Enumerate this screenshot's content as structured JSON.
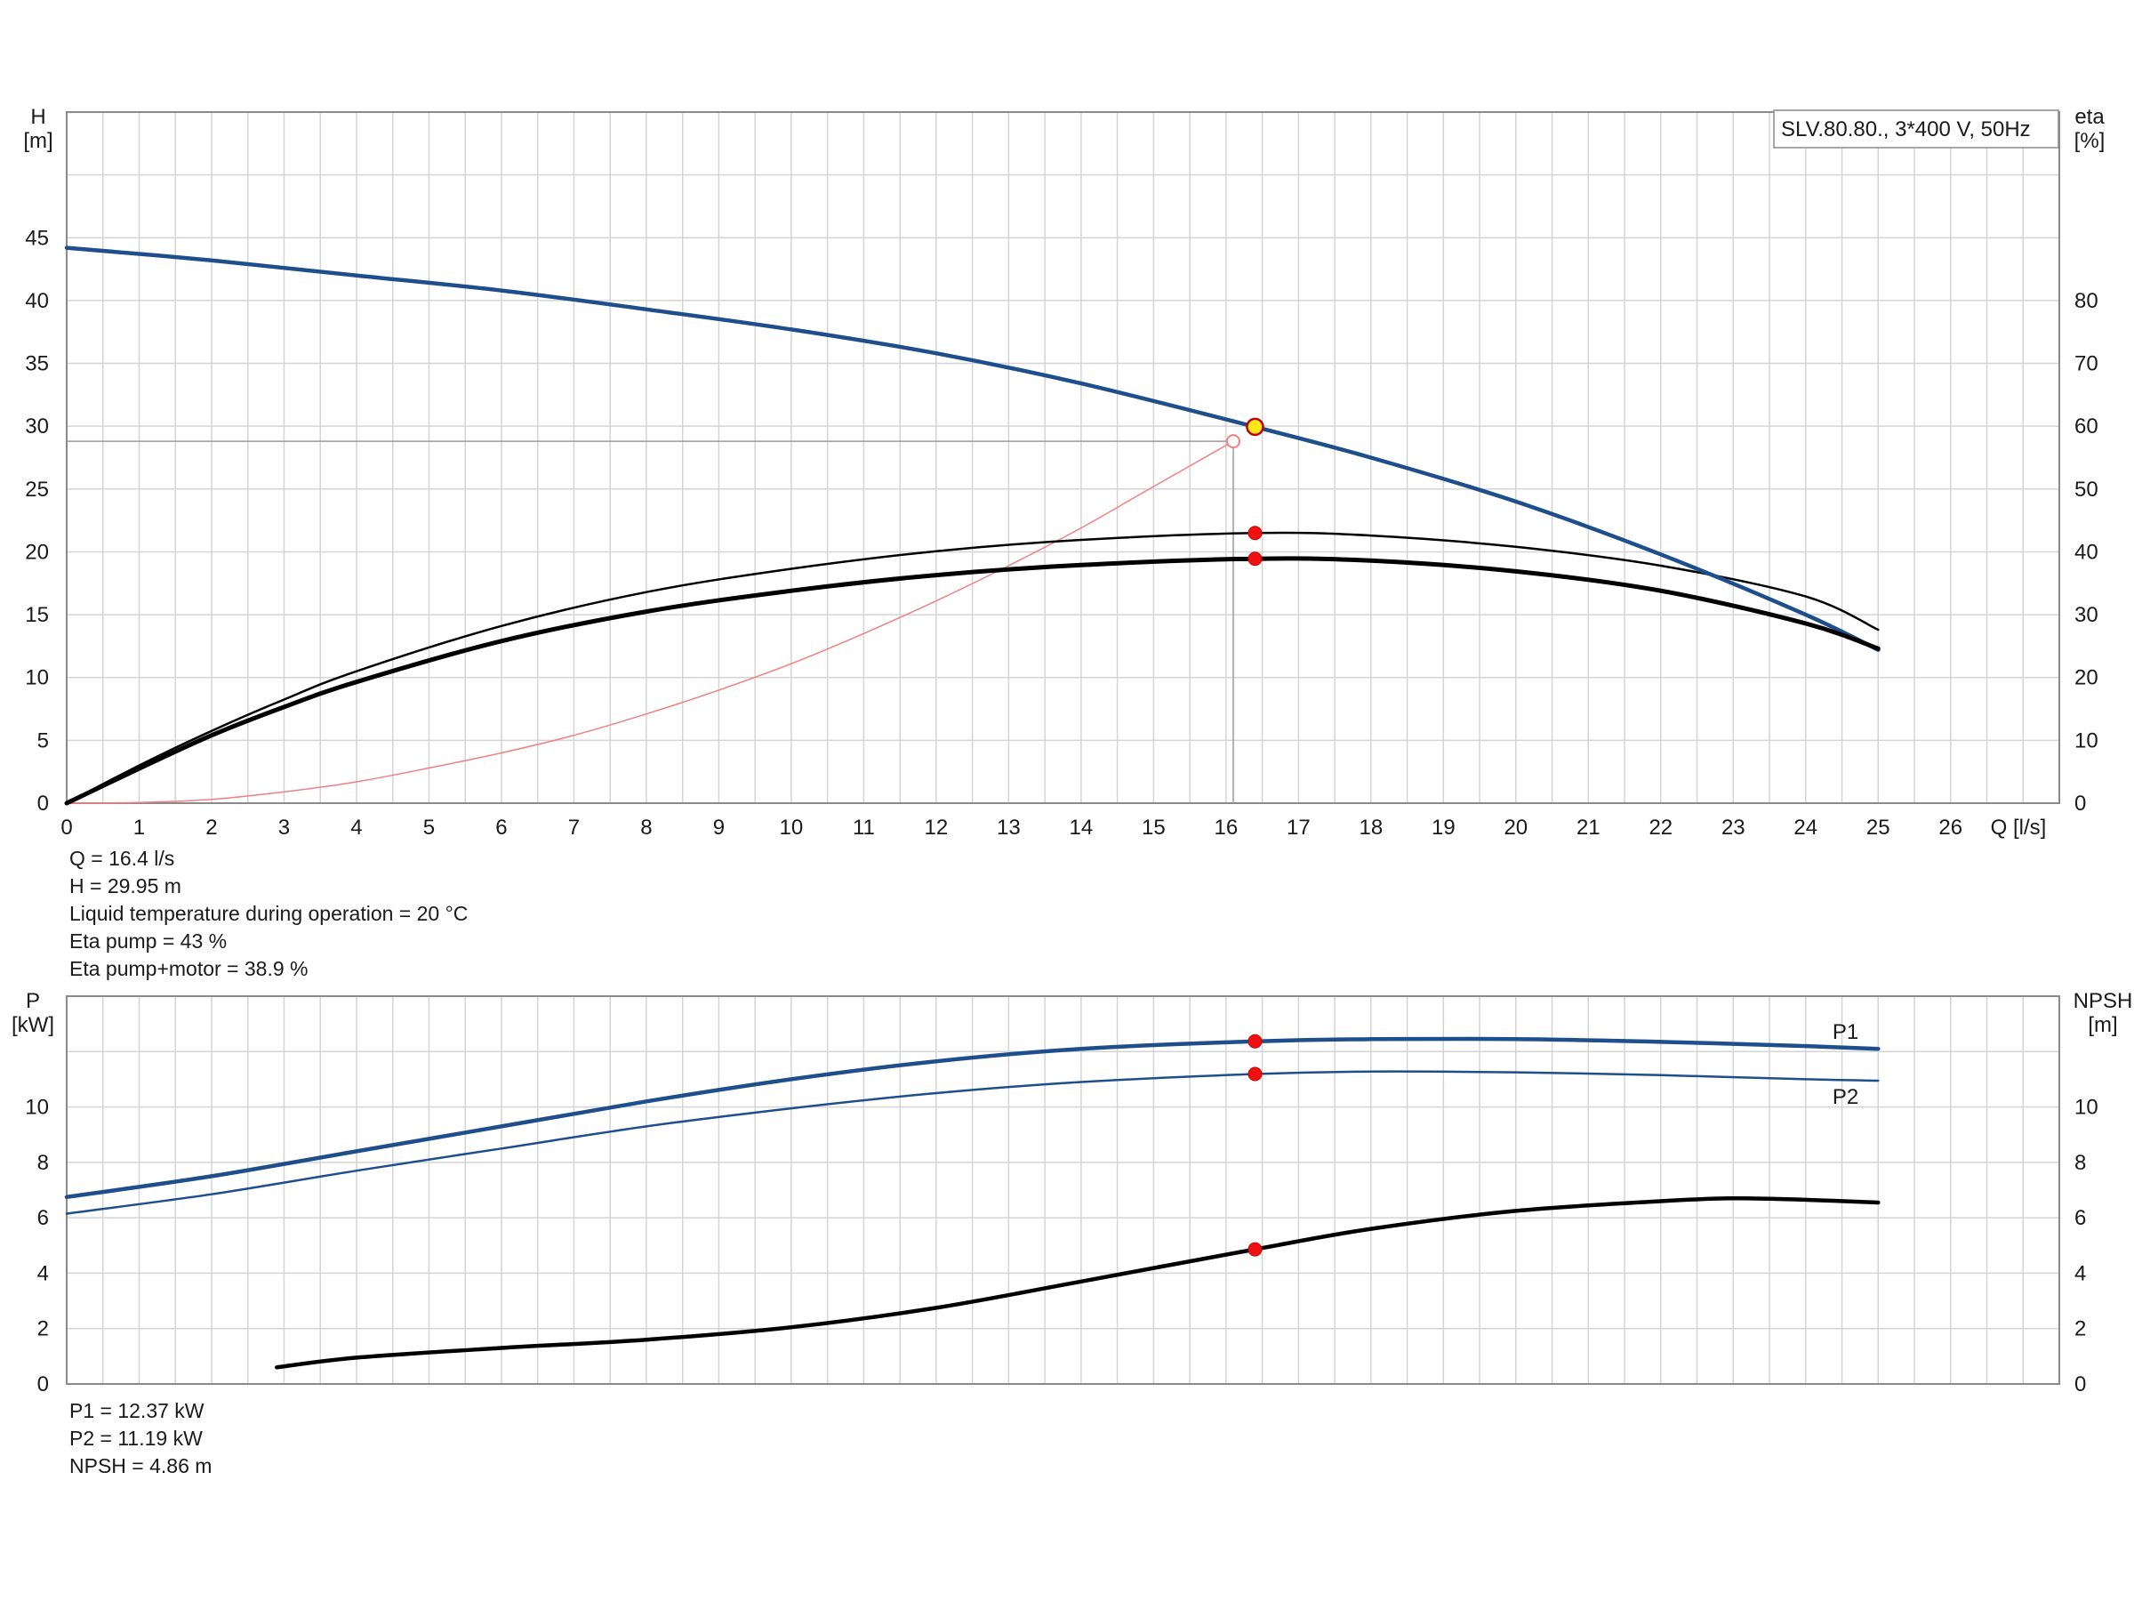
{
  "chart_data": [
    {
      "type": "line",
      "panel": "head-efficiency",
      "legend_box": "SLV.80.80., 3*400 V, 50Hz",
      "xlabel": "Q [l/s]",
      "ylabel_left": [
        "H",
        "[m]"
      ],
      "ylabel_right": [
        "eta",
        "[%]"
      ],
      "xlim": [
        0,
        27.5
      ],
      "ylim_left": [
        0,
        55
      ],
      "ylim_right": [
        0,
        110
      ],
      "x_ticks": [
        0,
        1,
        2,
        3,
        4,
        5,
        6,
        7,
        8,
        9,
        10,
        11,
        12,
        13,
        14,
        15,
        16,
        17,
        18,
        19,
        20,
        21,
        22,
        23,
        24,
        25,
        26
      ],
      "y_ticks_left": [
        0,
        5,
        10,
        15,
        20,
        25,
        30,
        35,
        40,
        45
      ],
      "y_ticks_right": [
        0,
        10,
        20,
        30,
        40,
        50,
        60,
        70,
        80
      ],
      "grid": true,
      "series": [
        {
          "id": "head",
          "axis": "left",
          "color": "#1f4e8c",
          "width": 4.5,
          "x": [
            0,
            2,
            4,
            6,
            8,
            10,
            12,
            14,
            16.4,
            18,
            20,
            22,
            24,
            25
          ],
          "y": [
            44.2,
            43.2,
            42.0,
            40.8,
            39.3,
            37.7,
            35.8,
            33.4,
            29.95,
            27.5,
            24.0,
            19.8,
            15.0,
            12.2
          ]
        },
        {
          "id": "eta-pump",
          "axis": "right",
          "color": "#000000",
          "width": 2.5,
          "x": [
            0,
            1,
            2,
            3,
            4,
            6,
            8,
            10,
            12,
            14,
            16.4,
            18,
            20,
            22,
            24,
            25
          ],
          "y": [
            0,
            6.0,
            11.5,
            16.5,
            21.0,
            28.2,
            33.6,
            37.3,
            40.1,
            41.9,
            43.0,
            42.6,
            40.8,
            37.8,
            32.9,
            27.6
          ]
        },
        {
          "id": "eta-pump-motor",
          "axis": "right",
          "color": "#000000",
          "width": 5,
          "x": [
            0,
            1,
            2,
            3,
            4,
            6,
            8,
            10,
            12,
            14,
            16.4,
            18,
            20,
            22,
            24,
            25
          ],
          "y": [
            0,
            5.5,
            10.8,
            15.3,
            19.3,
            25.8,
            30.5,
            33.8,
            36.3,
            37.9,
            38.9,
            38.6,
            36.9,
            33.8,
            28.6,
            24.6
          ]
        },
        {
          "id": "system-curve",
          "axis": "left",
          "color": "#f08080",
          "width": 1.5,
          "x": [
            0,
            1,
            2,
            3,
            4,
            5,
            6,
            7,
            8,
            9,
            10,
            11,
            12,
            13,
            14,
            15,
            16.1
          ],
          "y": [
            0,
            0.05,
            0.3,
            0.9,
            1.7,
            2.8,
            4.0,
            5.4,
            7.1,
            9.0,
            11.1,
            13.5,
            16.1,
            18.9,
            21.9,
            25.2,
            28.8
          ]
        }
      ],
      "guide": {
        "x": 16.1,
        "y": 28.8,
        "color": "#9a9a9a"
      },
      "points": [
        {
          "x": 16.4,
          "y": 29.95,
          "axis": "left",
          "style": "yellow"
        },
        {
          "x": 16.1,
          "y": 28.8,
          "axis": "left",
          "style": "open"
        },
        {
          "x": 16.4,
          "y": 43.0,
          "axis": "right",
          "style": "red"
        },
        {
          "x": 16.4,
          "y": 38.9,
          "axis": "right",
          "style": "red"
        }
      ],
      "info_lines": [
        "Q = 16.4 l/s",
        "H = 29.95 m",
        "Liquid temperature during operation = 20 °C",
        "Eta pump = 43 %",
        "Eta pump+motor = 38.9 %"
      ]
    },
    {
      "type": "line",
      "panel": "power-npsh",
      "ylabel_left": [
        "P",
        "[kW]"
      ],
      "ylabel_right": [
        "NPSH",
        "[m]"
      ],
      "xlim": [
        0,
        27.5
      ],
      "ylim_left": [
        0,
        14
      ],
      "ylim_right": [
        0,
        14
      ],
      "y_ticks_left": [
        0,
        2,
        4,
        6,
        8,
        10
      ],
      "y_ticks_right": [
        0,
        2,
        4,
        6,
        8,
        10
      ],
      "grid": true,
      "series": [
        {
          "id": "p1",
          "name": "P1",
          "axis": "left",
          "color": "#1f4e8c",
          "width": 4.5,
          "x": [
            0,
            2,
            4,
            6,
            8,
            10,
            12,
            14,
            16.4,
            18,
            20,
            22,
            24,
            25
          ],
          "y": [
            6.75,
            7.5,
            8.4,
            9.3,
            10.2,
            11.0,
            11.65,
            12.1,
            12.37,
            12.45,
            12.45,
            12.35,
            12.2,
            12.1
          ]
        },
        {
          "id": "p2",
          "name": "P2",
          "axis": "left",
          "color": "#1f4e8c",
          "width": 2.5,
          "x": [
            0,
            2,
            4,
            6,
            8,
            10,
            12,
            14,
            16.4,
            18,
            20,
            22,
            24,
            25
          ],
          "y": [
            6.15,
            6.85,
            7.7,
            8.5,
            9.3,
            9.95,
            10.5,
            10.9,
            11.19,
            11.28,
            11.25,
            11.15,
            11.0,
            10.95
          ]
        },
        {
          "id": "npsh",
          "axis": "right",
          "color": "#000000",
          "width": 4.5,
          "x": [
            2.9,
            4,
            6,
            8,
            10,
            12,
            14,
            16.4,
            18,
            20,
            22,
            23,
            24,
            25
          ],
          "y": [
            0.6,
            0.95,
            1.3,
            1.6,
            2.05,
            2.75,
            3.7,
            4.86,
            5.6,
            6.25,
            6.6,
            6.7,
            6.65,
            6.55
          ]
        }
      ],
      "points": [
        {
          "x": 16.4,
          "y": 12.37,
          "axis": "left",
          "style": "red"
        },
        {
          "x": 16.4,
          "y": 11.19,
          "axis": "left",
          "style": "red"
        },
        {
          "x": 16.4,
          "y": 4.86,
          "axis": "right",
          "style": "red"
        }
      ],
      "info_lines": [
        "P1 = 12.37 kW",
        "P2 = 11.19 kW",
        "NPSH = 4.86 m"
      ]
    }
  ]
}
